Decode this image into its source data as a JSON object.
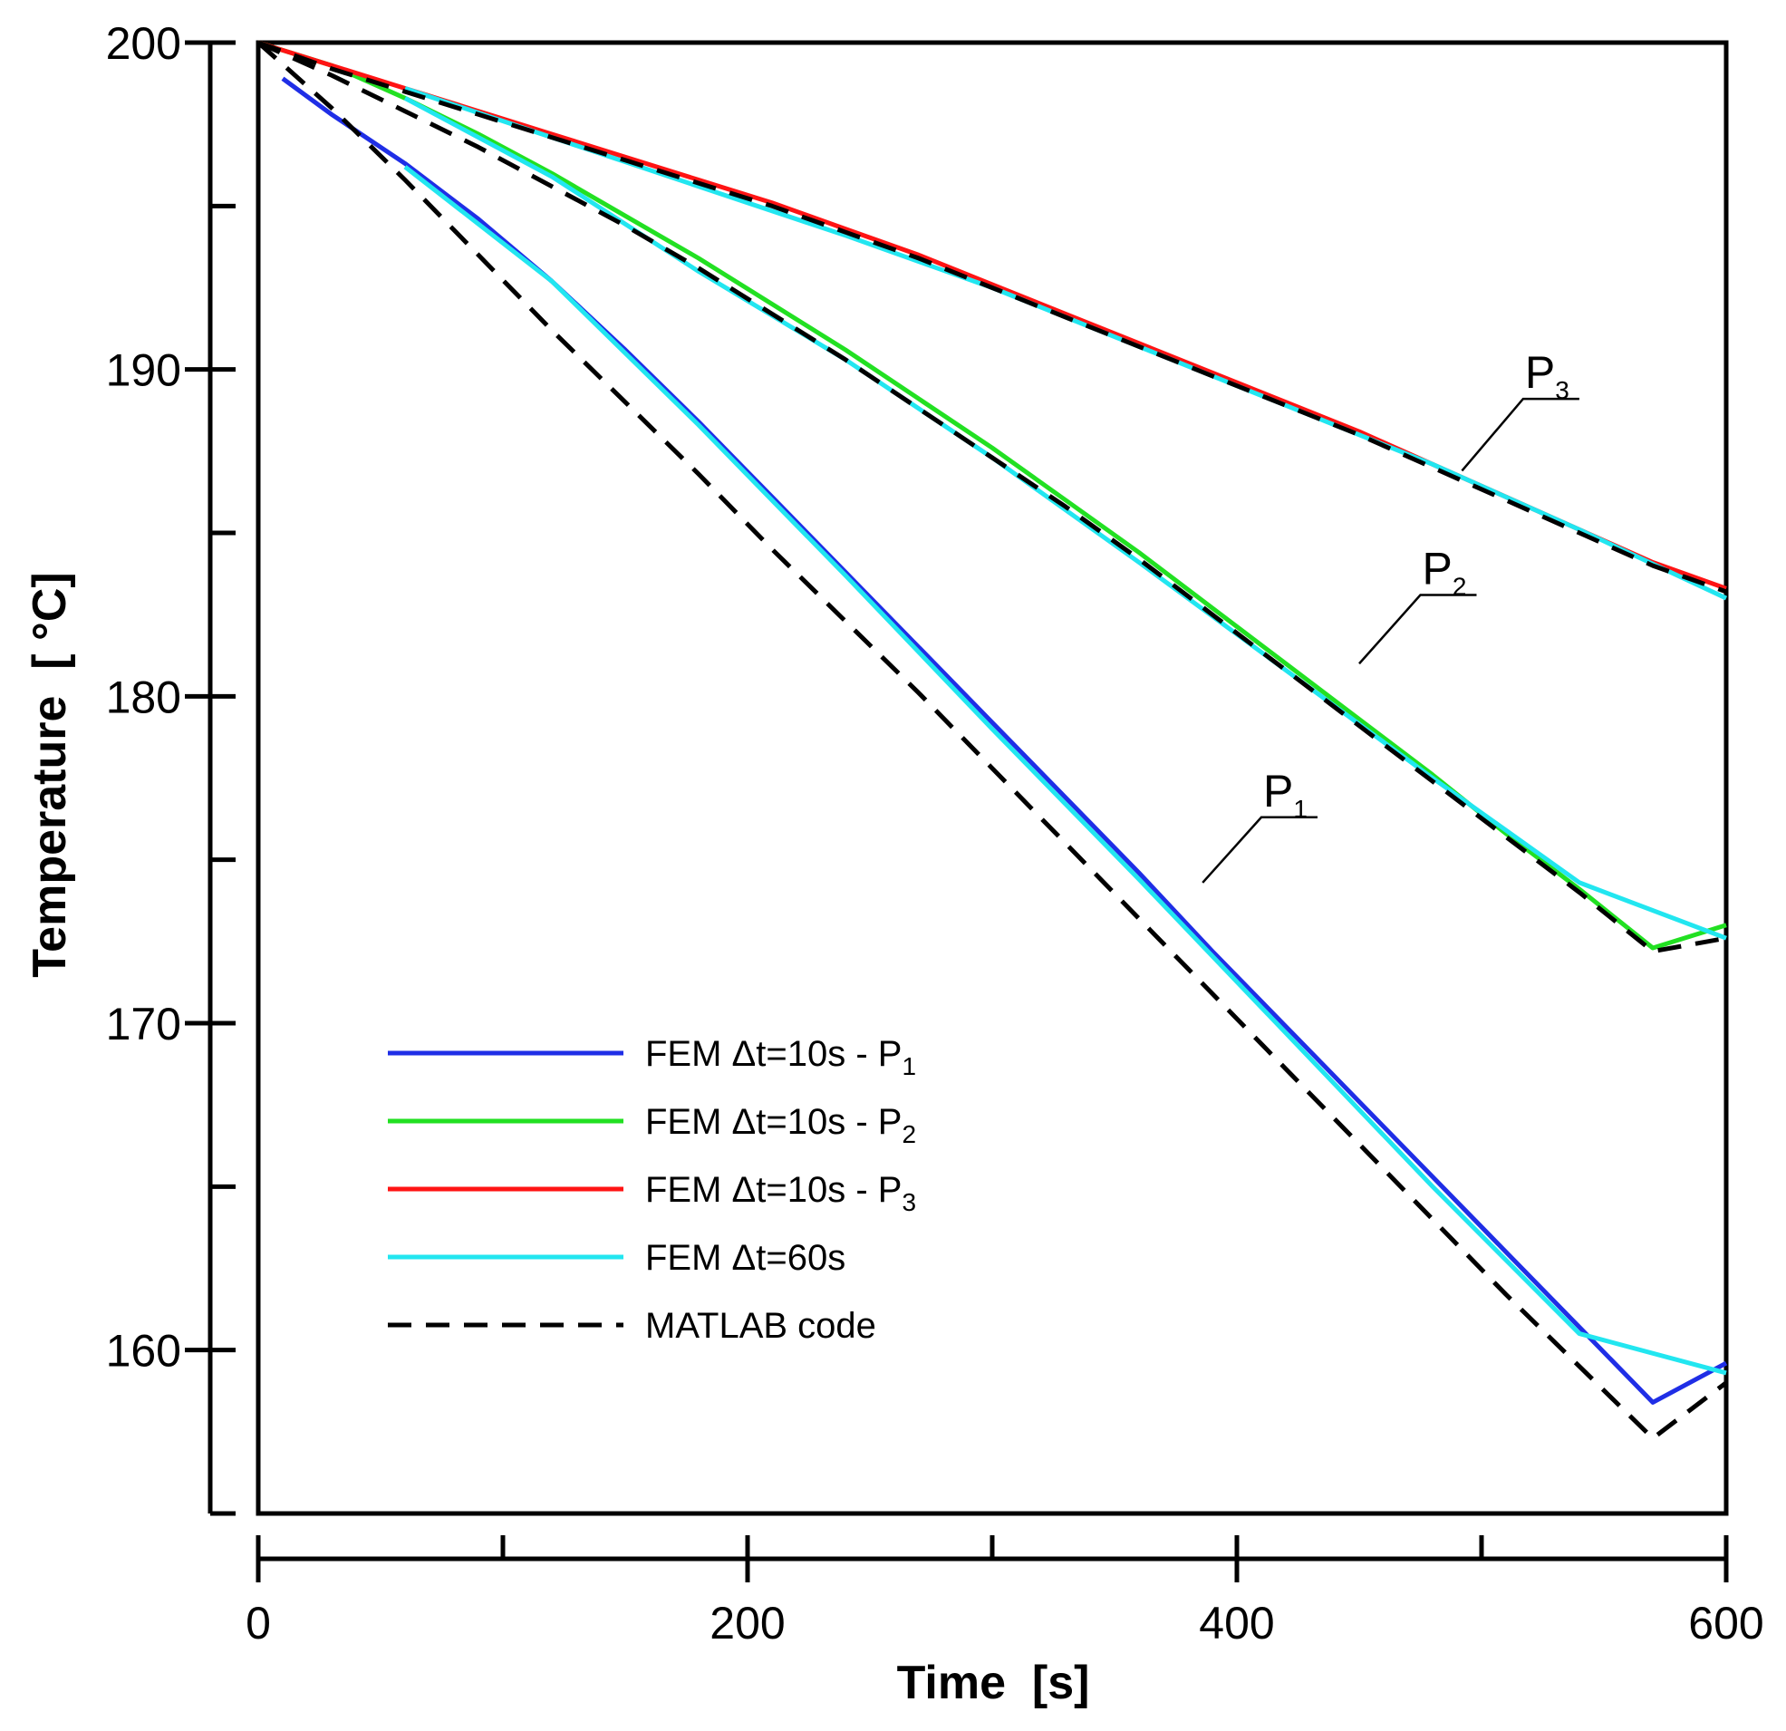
{
  "chart_data": {
    "type": "line",
    "title": "",
    "xlabel": "Time  [s]",
    "ylabel": "Temperature  [ °C]",
    "xlim": [
      0,
      600
    ],
    "ylim": [
      155,
      200
    ],
    "xticks_major": [
      0,
      200,
      400,
      600
    ],
    "xticks_minor": [
      100,
      300,
      500
    ],
    "yticks_major": [
      160,
      170,
      180,
      190,
      200
    ],
    "yticks_minor": [
      155,
      165,
      175,
      185,
      195
    ],
    "grid": false,
    "legend_position": "lower-left",
    "colors": {
      "p1": "#1f2ee6",
      "p2": "#22e022",
      "p3": "#ff1414",
      "dt60": "#22e6f0",
      "matlab": "#000000"
    },
    "series": [
      {
        "key": "p1",
        "name": "FEM Δt=10s - P",
        "sub": "1",
        "style": "solid",
        "x": [
          10,
          30,
          60,
          90,
          120,
          150,
          180,
          210,
          240,
          270,
          300,
          330,
          360,
          390,
          420,
          450,
          480,
          510,
          540,
          570,
          600
        ],
        "y": [
          198.9,
          197.8,
          196.3,
          194.6,
          192.7,
          190.6,
          188.4,
          186.1,
          183.8,
          181.5,
          179.2,
          176.9,
          174.6,
          172.2,
          169.9,
          167.6,
          165.3,
          163.0,
          160.7,
          158.4,
          159.6
        ]
      },
      {
        "key": "p2",
        "name": "FEM Δt=10s - P",
        "sub": "2",
        "style": "solid",
        "x": [
          0,
          30,
          60,
          90,
          120,
          150,
          180,
          210,
          240,
          270,
          300,
          330,
          360,
          390,
          420,
          450,
          480,
          510,
          540,
          570,
          600
        ],
        "y": [
          200.0,
          199.3,
          198.3,
          197.2,
          196.0,
          194.7,
          193.4,
          192.0,
          190.6,
          189.1,
          187.6,
          186.0,
          184.4,
          182.7,
          181.0,
          179.3,
          177.6,
          175.8,
          174.1,
          172.3,
          173.0
        ]
      },
      {
        "key": "p3",
        "name": "FEM Δt=10s - P",
        "sub": "3",
        "style": "solid",
        "x": [
          0,
          30,
          60,
          90,
          120,
          150,
          180,
          210,
          240,
          270,
          300,
          330,
          360,
          390,
          420,
          450,
          480,
          510,
          540,
          570,
          600
        ],
        "y": [
          200.0,
          199.3,
          198.6,
          197.9,
          197.2,
          196.5,
          195.8,
          195.1,
          194.3,
          193.5,
          192.6,
          191.7,
          190.8,
          189.9,
          189.0,
          188.1,
          187.1,
          186.1,
          185.1,
          184.1,
          183.3
        ]
      },
      {
        "key": "dt60",
        "name": "FEM Δt=60s",
        "sub": "",
        "style": "solid",
        "x": [
          60,
          120,
          180,
          240,
          300,
          360,
          420,
          480,
          540,
          600
        ],
        "y": [
          196.2,
          192.7,
          188.3,
          183.7,
          179.0,
          174.4,
          169.7,
          165.0,
          160.5,
          159.3
        ]
      },
      {
        "key": "dt60",
        "name": "FEM Δt=60s (P2)",
        "sub": "",
        "style": "solid",
        "x": [
          60,
          120,
          180,
          240,
          300,
          360,
          420,
          480,
          540,
          600
        ],
        "y": [
          198.3,
          195.9,
          193.0,
          190.3,
          187.3,
          184.1,
          180.8,
          177.5,
          174.3,
          172.6
        ]
      },
      {
        "key": "dt60",
        "name": "FEM Δt=60s (P3)",
        "sub": "",
        "style": "solid",
        "x": [
          60,
          120,
          180,
          240,
          300,
          360,
          420,
          480,
          540,
          600
        ],
        "y": [
          198.6,
          197.1,
          195.6,
          194.1,
          192.5,
          190.7,
          188.9,
          187.1,
          185.1,
          183.0
        ]
      },
      {
        "key": "matlab",
        "name": "MATLAB code (P1)",
        "sub": "",
        "style": "dashed",
        "x": [
          0,
          30,
          60,
          90,
          120,
          150,
          180,
          210,
          240,
          270,
          300,
          330,
          360,
          390,
          420,
          450,
          480,
          510,
          540,
          570,
          600
        ],
        "y": [
          200.0,
          198.0,
          195.8,
          193.5,
          191.2,
          189.0,
          186.8,
          184.5,
          182.3,
          180.1,
          177.8,
          175.5,
          173.2,
          170.9,
          168.6,
          166.3,
          164.0,
          161.7,
          159.5,
          157.3,
          159.0
        ]
      },
      {
        "key": "matlab",
        "name": "MATLAB code (P2)",
        "sub": "",
        "style": "dashed",
        "x": [
          0,
          30,
          60,
          90,
          120,
          150,
          180,
          210,
          240,
          270,
          300,
          330,
          360,
          390,
          420,
          450,
          480,
          510,
          540,
          570,
          600
        ],
        "y": [
          200.0,
          199.0,
          197.9,
          196.8,
          195.6,
          194.4,
          193.1,
          191.7,
          190.3,
          188.8,
          187.3,
          185.8,
          184.2,
          182.5,
          180.8,
          179.1,
          177.4,
          175.7,
          174.0,
          172.2,
          172.6
        ]
      },
      {
        "key": "matlab",
        "name": "MATLAB code (P3)",
        "sub": "",
        "style": "dashed",
        "x": [
          0,
          30,
          60,
          90,
          120,
          150,
          180,
          210,
          240,
          270,
          300,
          330,
          360,
          390,
          420,
          450,
          480,
          510,
          540,
          570,
          600
        ],
        "y": [
          200.0,
          199.2,
          198.5,
          197.8,
          197.1,
          196.4,
          195.7,
          195.0,
          194.2,
          193.4,
          192.5,
          191.6,
          190.7,
          189.8,
          188.9,
          188.0,
          187.0,
          186.0,
          185.0,
          184.0,
          183.2
        ]
      }
    ],
    "legend": [
      {
        "key": "p1",
        "label": "FEM Δt=10s - P",
        "sub": "1",
        "style": "solid"
      },
      {
        "key": "p2",
        "label": "FEM Δt=10s - P",
        "sub": "2",
        "style": "solid"
      },
      {
        "key": "p3",
        "label": "FEM Δt=10s - P",
        "sub": "3",
        "style": "solid"
      },
      {
        "key": "dt60",
        "label": "FEM Δt=60s",
        "sub": "",
        "style": "solid"
      },
      {
        "key": "matlab",
        "label": "MATLAB code",
        "sub": "",
        "style": "dashed"
      }
    ],
    "annotations": [
      {
        "label": "P",
        "sub": "1",
        "point_x": 386,
        "point_y": 174.3,
        "label_x": 410,
        "label_y": 176.3
      },
      {
        "label": "P",
        "sub": "2",
        "point_x": 450,
        "point_y": 181.0,
        "label_x": 475,
        "label_y": 183.1
      },
      {
        "label": "P",
        "sub": "3",
        "point_x": 492,
        "point_y": 186.9,
        "label_x": 517,
        "label_y": 189.1
      }
    ]
  }
}
